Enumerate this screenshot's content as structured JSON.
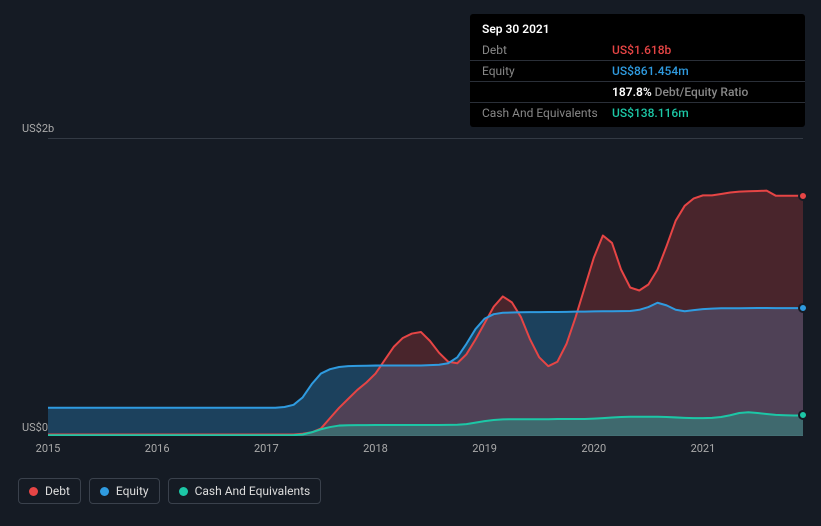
{
  "tooltip": {
    "date": "Sep 30 2021",
    "rows": [
      {
        "label": "Debt",
        "value": "US$1.618b",
        "color": "#e64545"
      },
      {
        "label": "Equity",
        "value": "US$861.454m",
        "color": "#2f9be0"
      },
      {
        "label": "",
        "value_strong": "187.8%",
        "value_suffix": " Debt/Equity Ratio",
        "color": "#ffffff"
      },
      {
        "label": "Cash And Equivalents",
        "value": "US$138.116m",
        "color": "#1cc7a6"
      }
    ]
  },
  "chart": {
    "type": "area",
    "background_color": "#151b24",
    "grid_color": "#333a44",
    "axis_label_color": "#aaaaaa",
    "axis_fontsize": 11,
    "ylim": [
      0,
      2000
    ],
    "y_ticks": [
      {
        "v": 0,
        "label": "US$0"
      },
      {
        "v": 2000,
        "label": "US$2b"
      }
    ],
    "x_years": [
      "2015",
      "2016",
      "2017",
      "2018",
      "2019",
      "2020",
      "2021"
    ],
    "x_range_months": 84,
    "series": [
      {
        "name": "Debt",
        "color": "#e64545",
        "fill_opacity": 0.25,
        "line_width": 2,
        "data": [
          10,
          10,
          10,
          10,
          10,
          10,
          10,
          10,
          10,
          10,
          10,
          10,
          10,
          10,
          10,
          10,
          10,
          10,
          10,
          10,
          10,
          10,
          10,
          10,
          10,
          10,
          10,
          10,
          15,
          25,
          50,
          120,
          190,
          250,
          310,
          360,
          420,
          510,
          600,
          660,
          690,
          700,
          640,
          560,
          500,
          490,
          550,
          650,
          760,
          870,
          940,
          900,
          800,
          650,
          530,
          470,
          500,
          620,
          800,
          1000,
          1200,
          1350,
          1300,
          1120,
          1000,
          980,
          1020,
          1120,
          1280,
          1450,
          1550,
          1600,
          1620,
          1620,
          1630,
          1640,
          1645,
          1648,
          1650,
          1652,
          1618,
          1618,
          1618,
          1618
        ]
      },
      {
        "name": "Equity",
        "color": "#2f9be0",
        "fill_opacity": 0.3,
        "line_width": 2,
        "data": [
          190,
          190,
          190,
          190,
          190,
          190,
          190,
          190,
          190,
          190,
          190,
          190,
          190,
          190,
          190,
          190,
          190,
          190,
          190,
          190,
          190,
          190,
          190,
          190,
          190,
          190,
          195,
          210,
          260,
          350,
          420,
          450,
          465,
          470,
          472,
          473,
          474,
          475,
          475,
          475,
          475,
          475,
          477,
          480,
          490,
          530,
          620,
          720,
          790,
          820,
          830,
          832,
          833,
          834,
          834,
          835,
          835,
          836,
          837,
          838,
          839,
          840,
          840,
          841,
          842,
          850,
          868,
          897,
          880,
          850,
          840,
          848,
          855,
          858,
          860,
          860,
          860,
          861,
          862,
          862,
          861,
          861,
          861,
          861
        ]
      },
      {
        "name": "Cash And Equivalents",
        "color": "#1cc7a6",
        "fill_opacity": 0.3,
        "line_width": 2,
        "data": [
          5,
          5,
          5,
          5,
          5,
          5,
          5,
          5,
          5,
          5,
          5,
          5,
          5,
          5,
          5,
          5,
          5,
          5,
          5,
          5,
          5,
          5,
          5,
          5,
          5,
          5,
          5,
          6,
          10,
          25,
          45,
          60,
          70,
          72,
          73,
          73,
          74,
          74,
          74,
          74,
          74,
          74,
          74,
          74,
          75,
          76,
          80,
          90,
          100,
          108,
          112,
          113,
          113,
          113,
          113,
          113,
          114,
          114,
          115,
          115,
          117,
          120,
          124,
          128,
          130,
          130,
          130,
          130,
          128,
          125,
          122,
          120,
          120,
          122,
          128,
          140,
          155,
          160,
          155,
          148,
          142,
          140,
          138,
          138
        ]
      }
    ],
    "end_markers": [
      {
        "series": "Debt",
        "color": "#e64545",
        "v": 1618
      },
      {
        "series": "Equity",
        "color": "#2f9be0",
        "v": 861
      },
      {
        "series": "Cash And Equivalents",
        "color": "#1cc7a6",
        "v": 138
      }
    ]
  },
  "legend": {
    "items": [
      {
        "label": "Debt",
        "color": "#e64545"
      },
      {
        "label": "Equity",
        "color": "#2f9be0"
      },
      {
        "label": "Cash And Equivalents",
        "color": "#1cc7a6"
      }
    ]
  }
}
